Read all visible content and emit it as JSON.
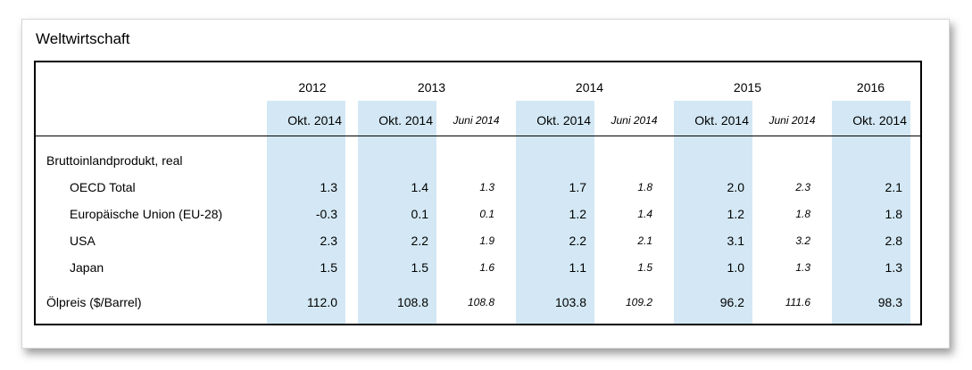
{
  "title": "Weltwirtschaft",
  "table": {
    "years": [
      "2012",
      "2013",
      "2014",
      "2015",
      "2016"
    ],
    "subheaders": [
      "Okt. 2014",
      "Okt. 2014",
      "Juni 2014",
      "Okt. 2014",
      "Juni 2014",
      "Okt. 2014",
      "Juni 2014",
      "Okt. 2014"
    ],
    "section_label": "Bruttoinlandprodukt, real",
    "gdp_rows": [
      {
        "label": "OECD Total",
        "values": [
          "1.3",
          "1.4",
          "1.3",
          "1.7",
          "1.8",
          "2.0",
          "2.3",
          "2.1"
        ]
      },
      {
        "label": "Europäische Union (EU-28)",
        "values": [
          "-0.3",
          "0.1",
          "0.1",
          "1.2",
          "1.4",
          "1.2",
          "1.8",
          "1.8"
        ]
      },
      {
        "label": "USA",
        "values": [
          "2.3",
          "2.2",
          "1.9",
          "2.2",
          "2.1",
          "3.1",
          "3.2",
          "2.8"
        ]
      },
      {
        "label": "Japan",
        "values": [
          "1.5",
          "1.5",
          "1.6",
          "1.1",
          "1.5",
          "1.0",
          "1.3",
          "1.3"
        ]
      }
    ],
    "oil_row": {
      "label": "Ölpreis ($/Barrel)",
      "values": [
        "112.0",
        "108.8",
        "108.8",
        "103.8",
        "109.2",
        "96.2",
        "111.6",
        "98.3"
      ]
    }
  },
  "colors": {
    "highlight_column": "#d3e8f4",
    "table_border": "#000000",
    "divider": "#000000"
  }
}
